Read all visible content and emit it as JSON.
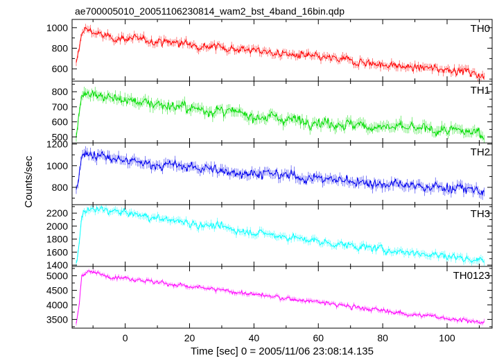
{
  "chart_data": {
    "type": "line",
    "title": "ae700005010_20051106230814_wam2_bst_4band_16bin.qdp",
    "xlabel": "Time [sec] 0 = 2005/11/06 23:08:14.135",
    "ylabel": "Counts/sec",
    "xlim": [
      -16.5,
      114
    ],
    "xticks": [
      0,
      20,
      40,
      60,
      80,
      100
    ],
    "x_start": -15.2,
    "x_end": 111.5,
    "grid": false,
    "panels": [
      {
        "name": "TH0",
        "color": "#ff0000",
        "ylim": [
          480,
          1080
        ],
        "yticks": [
          600,
          800,
          1000
        ],
        "points": [
          [
            -15.2,
            640
          ],
          [
            -14.3,
            780
          ],
          [
            -13.5,
            960
          ],
          [
            -12,
            990
          ],
          [
            -10,
            960
          ],
          [
            -8,
            930
          ],
          [
            -5,
            905
          ],
          [
            -2,
            895
          ],
          [
            0,
            900
          ],
          [
            5,
            880
          ],
          [
            10,
            870
          ],
          [
            20,
            840
          ],
          [
            30,
            810
          ],
          [
            40,
            780
          ],
          [
            50,
            740
          ],
          [
            60,
            710
          ],
          [
            70,
            680
          ],
          [
            80,
            640
          ],
          [
            90,
            610
          ],
          [
            100,
            600
          ],
          [
            105,
            580
          ],
          [
            110,
            545
          ],
          [
            111.5,
            525
          ]
        ],
        "noise": 38
      },
      {
        "name": "TH1",
        "color": "#00dd00",
        "ylim": [
          460,
          870
        ],
        "yticks": [
          500,
          600,
          700,
          800
        ],
        "points": [
          [
            -15.2,
            500
          ],
          [
            -14.3,
            640
          ],
          [
            -13.5,
            790
          ],
          [
            -12,
            805
          ],
          [
            -10,
            795
          ],
          [
            -5,
            760
          ],
          [
            0,
            745
          ],
          [
            10,
            720
          ],
          [
            20,
            690
          ],
          [
            30,
            670
          ],
          [
            40,
            640
          ],
          [
            50,
            620
          ],
          [
            60,
            600
          ],
          [
            70,
            580
          ],
          [
            80,
            565
          ],
          [
            90,
            555
          ],
          [
            100,
            540
          ],
          [
            105,
            535
          ],
          [
            110,
            530
          ],
          [
            111.5,
            520
          ]
        ],
        "noise": 34
      },
      {
        "name": "TH2",
        "color": "#0000ee",
        "ylim": [
          640,
          1210
        ],
        "yticks": [
          800,
          1000,
          1200
        ],
        "points": [
          [
            -15.2,
            780
          ],
          [
            -14.3,
            900
          ],
          [
            -13.5,
            1100
          ],
          [
            -12,
            1120
          ],
          [
            -10,
            1105
          ],
          [
            -5,
            1070
          ],
          [
            0,
            1040
          ],
          [
            10,
            1010
          ],
          [
            20,
            990
          ],
          [
            30,
            950
          ],
          [
            40,
            930
          ],
          [
            50,
            910
          ],
          [
            60,
            880
          ],
          [
            70,
            860
          ],
          [
            80,
            830
          ],
          [
            90,
            810
          ],
          [
            100,
            800
          ],
          [
            105,
            785
          ],
          [
            110,
            770
          ],
          [
            111.5,
            760
          ]
        ],
        "noise": 45
      },
      {
        "name": "TH3",
        "color": "#00ffff",
        "ylim": [
          1380,
          2330
        ],
        "yticks": [
          1400,
          1600,
          1800,
          2000,
          2200
        ],
        "points": [
          [
            -15.2,
            1420
          ],
          [
            -14.3,
            1700
          ],
          [
            -13.5,
            2150
          ],
          [
            -12,
            2230
          ],
          [
            -10,
            2260
          ],
          [
            -5,
            2245
          ],
          [
            0,
            2200
          ],
          [
            10,
            2120
          ],
          [
            20,
            2050
          ],
          [
            30,
            1980
          ],
          [
            40,
            1900
          ],
          [
            50,
            1840
          ],
          [
            60,
            1760
          ],
          [
            70,
            1700
          ],
          [
            80,
            1640
          ],
          [
            90,
            1590
          ],
          [
            100,
            1540
          ],
          [
            105,
            1510
          ],
          [
            110,
            1480
          ],
          [
            111.5,
            1470
          ]
        ],
        "noise": 55
      },
      {
        "name": "TH0123",
        "color": "#ff00ff",
        "ylim": [
          3200,
          5320
        ],
        "yticks": [
          3500,
          4000,
          4500,
          5000
        ],
        "points": [
          [
            -15.2,
            3330
          ],
          [
            -14.3,
            4000
          ],
          [
            -13.5,
            5000
          ],
          [
            -12,
            5150
          ],
          [
            -10,
            5100
          ],
          [
            -5,
            5000
          ],
          [
            0,
            4930
          ],
          [
            10,
            4780
          ],
          [
            20,
            4620
          ],
          [
            30,
            4500
          ],
          [
            40,
            4360
          ],
          [
            50,
            4220
          ],
          [
            60,
            4100
          ],
          [
            70,
            3940
          ],
          [
            80,
            3800
          ],
          [
            90,
            3660
          ],
          [
            100,
            3550
          ],
          [
            105,
            3480
          ],
          [
            110,
            3400
          ],
          [
            111.5,
            3360
          ]
        ],
        "noise": 75
      }
    ]
  }
}
